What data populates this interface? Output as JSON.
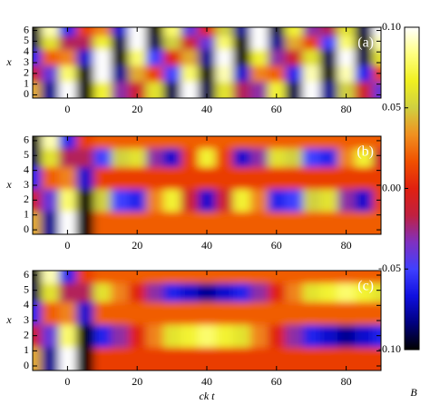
{
  "chart_data": [
    {
      "type": "heatmap",
      "label": "(a)",
      "ylabel": "x",
      "x": [
        -10,
        -5,
        0,
        5,
        10,
        15,
        20,
        25,
        30,
        35,
        40,
        45,
        50,
        55,
        60,
        65,
        70,
        75,
        80,
        85,
        90
      ],
      "y": [
        0.5,
        2,
        3.5,
        5,
        6
      ],
      "z": [
        [
          0.04,
          -0.08,
          0.1,
          -0.1,
          0.07,
          -0.03,
          -0.01,
          0.06,
          -0.09,
          0.1,
          -0.09,
          0.06,
          -0.02,
          -0.03,
          0.07,
          -0.09,
          0.1,
          -0.08,
          0.05,
          -0.01,
          -0.04
        ],
        [
          -0.01,
          -0.04,
          0.08,
          -0.1,
          0.1,
          -0.08,
          0.04,
          0.01,
          -0.05,
          0.08,
          -0.1,
          0.09,
          -0.07,
          0.03,
          0.02,
          -0.06,
          0.09,
          -0.1,
          0.09,
          -0.06,
          0.01
        ],
        [
          -0.06,
          0.02,
          0.03,
          -0.07,
          0.1,
          -0.1,
          0.08,
          -0.05,
          0,
          0.04,
          -0.08,
          0.1,
          -0.1,
          0.07,
          -0.03,
          -0.01,
          0.06,
          -0.09,
          0.1,
          -0.09,
          0.06
        ],
        [
          -0.09,
          0.06,
          -0.02,
          -0.02,
          0.07,
          -0.09,
          0.1,
          -0.09,
          0.05,
          -0.01,
          -0.04,
          0.08,
          -0.1,
          0.1,
          -0.08,
          0.04,
          0.01,
          -0.05,
          0.08,
          -0.1,
          0.09
        ],
        [
          -0.1,
          0.09,
          -0.06,
          0.01,
          0.03,
          -0.07,
          0.1,
          -0.1,
          0.08,
          -0.04,
          0,
          0.05,
          -0.08,
          0.1,
          -0.09,
          0.07,
          -0.03,
          -0.02,
          0.06,
          -0.09,
          0.1
        ]
      ],
      "xlim": [
        -10,
        90
      ],
      "ylim": [
        -0.3,
        6.3
      ],
      "xticks": [
        0,
        20,
        40,
        60,
        80
      ],
      "yticks": [
        0,
        1,
        2,
        3,
        4,
        5,
        6
      ]
    },
    {
      "type": "heatmap",
      "label": "(b)",
      "ylabel": "x",
      "x": [
        -10,
        -5,
        0,
        5,
        10,
        15,
        20,
        25,
        30,
        35,
        40,
        45,
        50,
        55,
        60,
        65,
        70,
        75,
        80,
        85,
        90
      ],
      "y": [
        0.5,
        2,
        3.5,
        5,
        6
      ],
      "z": [
        [
          0.04,
          -0.08,
          0.1,
          -0.1,
          0.02,
          0.02,
          0.02,
          0.02,
          0.02,
          0.02,
          0.02,
          0.02,
          0.02,
          0.02,
          0.02,
          0.02,
          0.02,
          0.02,
          0.02,
          0.02,
          0.02
        ],
        [
          -0.01,
          -0.04,
          0.08,
          -0.1,
          0.05,
          -0.05,
          -0.06,
          0.03,
          0.07,
          -0.01,
          -0.07,
          -0.01,
          0.07,
          0.03,
          -0.06,
          -0.05,
          0.05,
          0.06,
          -0.03,
          -0.07,
          0.01
        ],
        [
          -0.06,
          0.02,
          0.03,
          -0.07,
          0.01,
          0.01,
          0.01,
          0.01,
          0.01,
          0.01,
          0.01,
          0.01,
          0.01,
          0.01,
          0.01,
          0.01,
          0.01,
          0.01,
          0.01,
          0.01,
          0.01
        ],
        [
          -0.09,
          0.06,
          -0.02,
          -0.02,
          -0.05,
          0.05,
          0.06,
          -0.03,
          -0.07,
          0.01,
          0.07,
          0.01,
          -0.07,
          -0.03,
          0.06,
          0.05,
          -0.05,
          -0.06,
          0.03,
          0.07,
          -0.01
        ],
        [
          -0.1,
          0.09,
          -0.06,
          0.01,
          0.02,
          0.02,
          0.02,
          0.02,
          0.02,
          0.02,
          0.02,
          0.02,
          0.02,
          0.02,
          0.02,
          0.02,
          0.02,
          0.02,
          0.02,
          0.02,
          0.02
        ]
      ],
      "xlim": [
        -10,
        90
      ],
      "ylim": [
        -0.3,
        6.3
      ],
      "xticks": [
        0,
        20,
        40,
        60,
        80
      ],
      "yticks": [
        0,
        1,
        2,
        3,
        4,
        5,
        6
      ]
    },
    {
      "type": "heatmap",
      "label": "(c)",
      "ylabel": "x",
      "xlabel": "ck t",
      "x": [
        -10,
        -5,
        0,
        5,
        10,
        15,
        20,
        25,
        30,
        35,
        40,
        45,
        50,
        55,
        60,
        65,
        70,
        75,
        80,
        85,
        90
      ],
      "y": [
        0.5,
        2,
        3.5,
        5,
        6
      ],
      "z": [
        [
          0.04,
          -0.08,
          0.1,
          -0.1,
          0.01,
          0.01,
          0.01,
          0.01,
          0.01,
          0.01,
          0.01,
          0.01,
          0.01,
          0.01,
          0.01,
          0.01,
          0.01,
          0.01,
          0.01,
          0.01,
          0.01
        ],
        [
          -0.01,
          -0.04,
          0.08,
          -0.1,
          -0.06,
          -0.03,
          0,
          0.03,
          0.06,
          0.07,
          0.08,
          0.07,
          0.06,
          0.03,
          0,
          -0.03,
          -0.06,
          -0.07,
          -0.08,
          -0.07,
          -0.06
        ],
        [
          -0.06,
          0.02,
          0.03,
          -0.07,
          0.02,
          0.02,
          0.02,
          0.02,
          0.02,
          0.02,
          0.02,
          0.02,
          0.02,
          0.02,
          0.02,
          0.02,
          0.02,
          0.02,
          0.02,
          0.02,
          0.02
        ],
        [
          -0.09,
          0.06,
          -0.02,
          -0.02,
          0.06,
          0.03,
          0,
          -0.03,
          -0.06,
          -0.07,
          -0.08,
          -0.07,
          -0.06,
          -0.03,
          0,
          0.03,
          0.06,
          0.07,
          0.08,
          0.07,
          0.06
        ],
        [
          -0.1,
          0.09,
          -0.06,
          0.01,
          0.02,
          0.02,
          0.02,
          0.02,
          0.02,
          0.02,
          0.02,
          0.02,
          0.02,
          0.02,
          0.02,
          0.02,
          0.02,
          0.02,
          0.02,
          0.02,
          0.02
        ]
      ],
      "xlim": [
        -10,
        90
      ],
      "ylim": [
        -0.3,
        6.3
      ],
      "xticks": [
        0,
        20,
        40,
        60,
        80
      ],
      "yticks": [
        0,
        1,
        2,
        3,
        4,
        5,
        6
      ]
    }
  ],
  "colorbar": {
    "label": "B",
    "zlim": [
      -0.1,
      0.1
    ],
    "ticks": [
      {
        "value": 0.1,
        "label": "0.10"
      },
      {
        "value": 0.05,
        "label": "0.05"
      },
      {
        "value": 0,
        "label": "0.00"
      },
      {
        "value": -0.05,
        "label": "-0.05"
      },
      {
        "value": -0.1,
        "label": "-0.10"
      }
    ],
    "colors": [
      "#000000",
      "#000080",
      "#1010e0",
      "#4040ff",
      "#8030c0",
      "#c02040",
      "#e02010",
      "#f05000",
      "#f09020",
      "#d0d040",
      "#f0f020",
      "#ffff80",
      "#ffffff"
    ]
  }
}
